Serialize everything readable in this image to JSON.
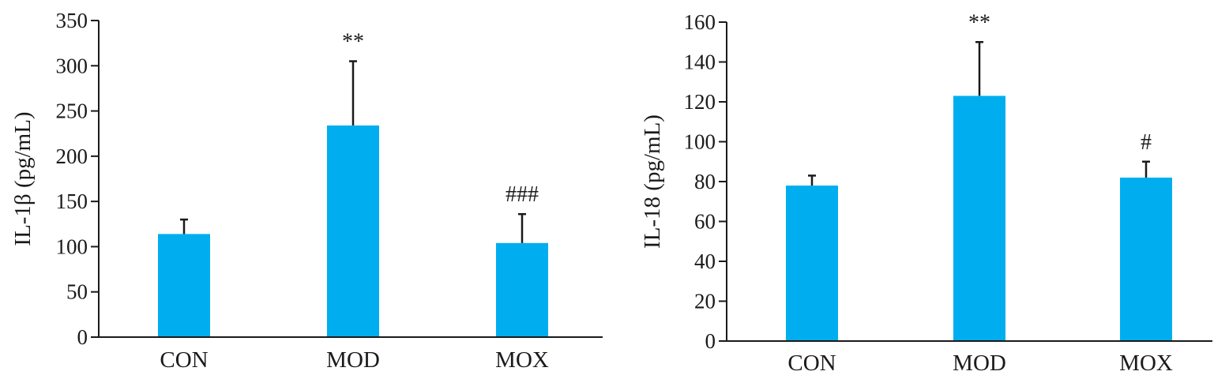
{
  "colors": {
    "bar": "#00AEEF",
    "axis": "#1a1a1a",
    "text": "#1a1a1a"
  },
  "chart_data": [
    {
      "type": "bar",
      "title": "",
      "xlabel": "",
      "ylabel": "IL-1β (pg/mL)",
      "ylim": [
        0,
        350
      ],
      "yticks": [
        0,
        50,
        100,
        150,
        200,
        250,
        300,
        350
      ],
      "categories": [
        "CON",
        "MOD",
        "MOX"
      ],
      "values": [
        114,
        234,
        104
      ],
      "errors": [
        16,
        71,
        32
      ],
      "annotations": [
        "",
        "**",
        "###"
      ]
    },
    {
      "type": "bar",
      "title": "",
      "xlabel": "",
      "ylabel": "IL-18 (pg/mL)",
      "ylim": [
        0,
        160
      ],
      "yticks": [
        0,
        20,
        40,
        60,
        80,
        100,
        120,
        140,
        160
      ],
      "categories": [
        "CON",
        "MOD",
        "MOX"
      ],
      "values": [
        78,
        123,
        82
      ],
      "errors": [
        5,
        27,
        8
      ],
      "annotations": [
        "",
        "**",
        "#"
      ]
    }
  ]
}
